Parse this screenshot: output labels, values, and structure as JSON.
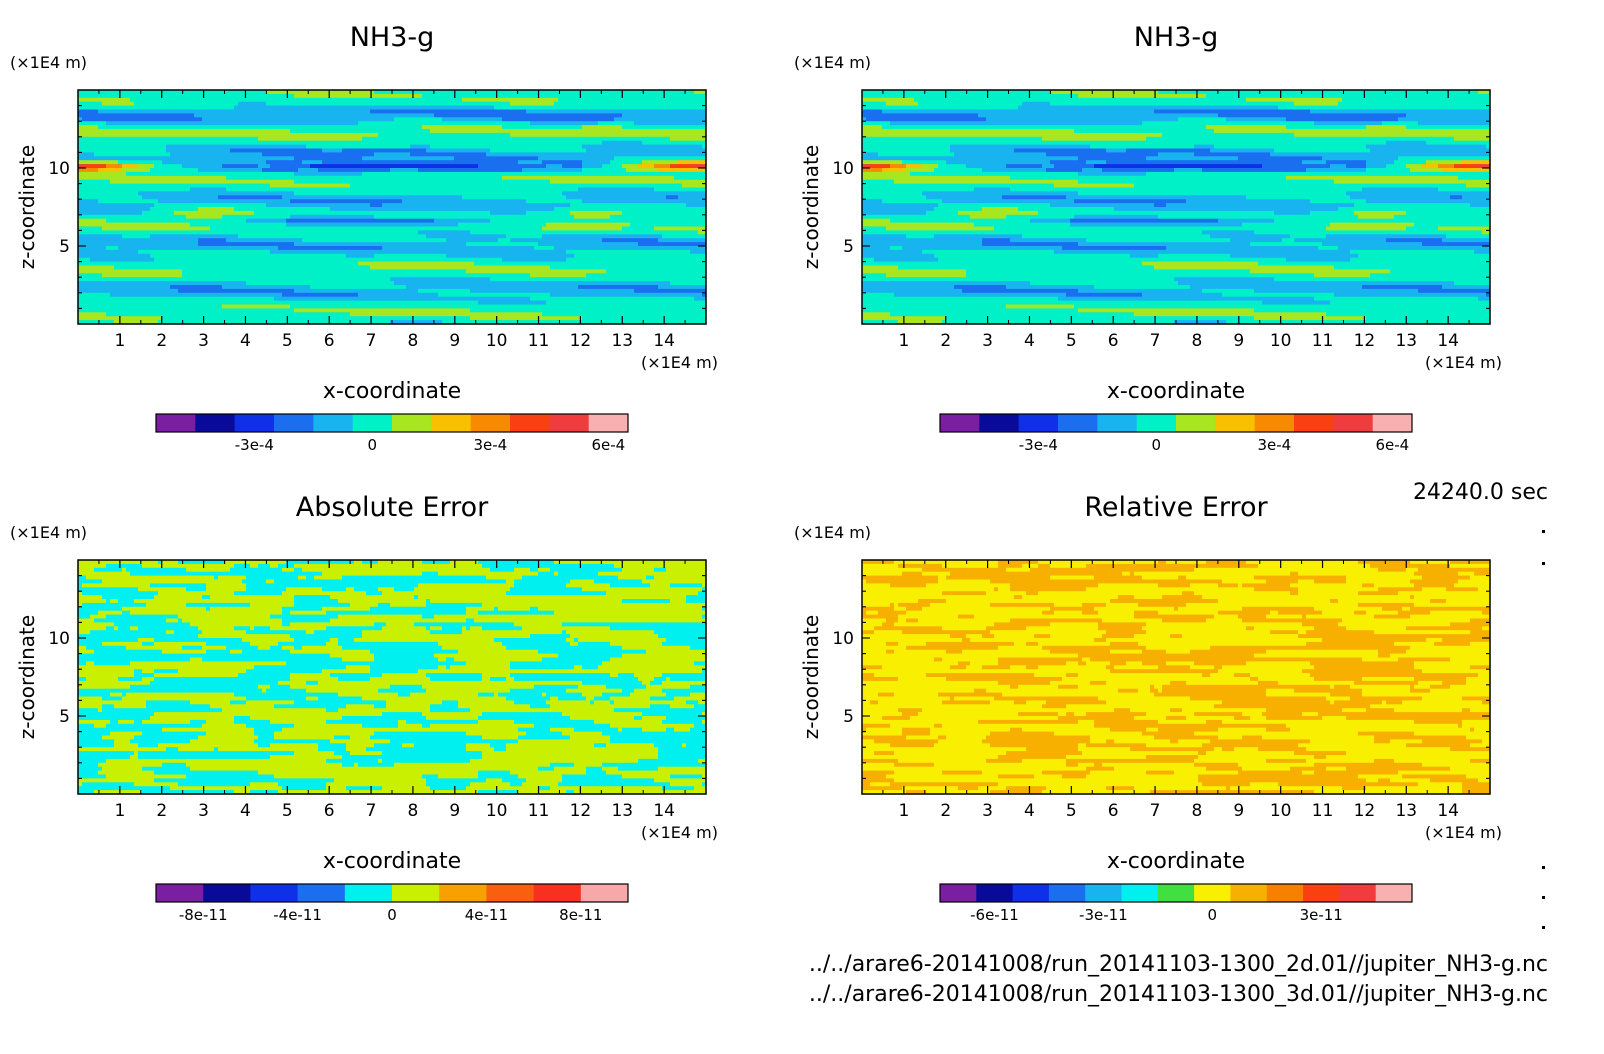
{
  "time_label": "24240.0 sec",
  "files": [
    "../../arare6-20141008/run_20141103-1300_2d.01//jupiter_NH3-g.nc",
    "../../arare6-20141008/run_20141103-1300_3d.01//jupiter_NH3-g.nc"
  ],
  "chart_data": [
    {
      "type": "heatmap",
      "title": "NH3-g",
      "xlabel": "x-coordinate",
      "ylabel": "z-coordinate",
      "x_unit": "(×1E4 m)",
      "y_unit": "(×1E4 m)",
      "xlim": [
        0,
        15
      ],
      "ylim": [
        0,
        15
      ],
      "x_ticks": [
        1,
        2,
        3,
        4,
        5,
        6,
        7,
        8,
        9,
        10,
        11,
        12,
        13,
        14
      ],
      "y_ticks": [
        5,
        10
      ],
      "colorbar": {
        "colors": [
          "#7a1fa2",
          "#0a0a9a",
          "#1030e8",
          "#1a6ef0",
          "#18b4f0",
          "#00f0c8",
          "#a8e620",
          "#f8c000",
          "#f88a00",
          "#f84010",
          "#f03c3c",
          "#f8b0b0"
        ],
        "tick_labels": [
          "-3e-4",
          "0",
          "3e-4",
          "6e-4"
        ],
        "tick_positions": [
          2.5,
          5.5,
          8.5,
          11.5
        ]
      },
      "field": "nh3"
    },
    {
      "type": "heatmap",
      "title": "NH3-g",
      "xlabel": "x-coordinate",
      "ylabel": "z-coordinate",
      "x_unit": "(×1E4 m)",
      "y_unit": "(×1E4 m)",
      "xlim": [
        0,
        15
      ],
      "ylim": [
        0,
        15
      ],
      "x_ticks": [
        1,
        2,
        3,
        4,
        5,
        6,
        7,
        8,
        9,
        10,
        11,
        12,
        13,
        14
      ],
      "y_ticks": [
        5,
        10
      ],
      "colorbar": {
        "colors": [
          "#7a1fa2",
          "#0a0a9a",
          "#1030e8",
          "#1a6ef0",
          "#18b4f0",
          "#00f0c8",
          "#a8e620",
          "#f8c000",
          "#f88a00",
          "#f84010",
          "#f03c3c",
          "#f8b0b0"
        ],
        "tick_labels": [
          "-3e-4",
          "0",
          "3e-4",
          "6e-4"
        ],
        "tick_positions": [
          2.5,
          5.5,
          8.5,
          11.5
        ]
      },
      "field": "nh3"
    },
    {
      "type": "heatmap",
      "title": "Absolute Error",
      "xlabel": "x-coordinate",
      "ylabel": "z-coordinate",
      "x_unit": "(×1E4 m)",
      "y_unit": "(×1E4 m)",
      "xlim": [
        0,
        15
      ],
      "ylim": [
        0,
        15
      ],
      "x_ticks": [
        1,
        2,
        3,
        4,
        5,
        6,
        7,
        8,
        9,
        10,
        11,
        12,
        13,
        14
      ],
      "y_ticks": [
        5,
        10
      ],
      "colorbar": {
        "colors": [
          "#7a1fa2",
          "#0a0a9a",
          "#1030e8",
          "#1a6ef0",
          "#00f0f0",
          "#c8f000",
          "#f8a000",
          "#f86010",
          "#f83020",
          "#f8a8a8"
        ],
        "tick_labels": [
          "-8e-11",
          "-4e-11",
          "0",
          "4e-11",
          "8e-11"
        ],
        "tick_positions": [
          1,
          3,
          5,
          7,
          9
        ]
      },
      "field": "abs"
    },
    {
      "type": "heatmap",
      "title": "Relative Error",
      "xlabel": "x-coordinate",
      "ylabel": "z-coordinate",
      "x_unit": "(×1E4 m)",
      "y_unit": "(×1E4 m)",
      "xlim": [
        0,
        15
      ],
      "ylim": [
        0,
        15
      ],
      "x_ticks": [
        1,
        2,
        3,
        4,
        5,
        6,
        7,
        8,
        9,
        10,
        11,
        12,
        13,
        14
      ],
      "y_ticks": [
        5,
        10
      ],
      "colorbar": {
        "colors": [
          "#7a1fa2",
          "#0a0a9a",
          "#1030e8",
          "#1a6ef0",
          "#18b4f0",
          "#00f0f0",
          "#40e040",
          "#f8f000",
          "#f8b000",
          "#f88000",
          "#f84010",
          "#f03c3c",
          "#f8b0b0"
        ],
        "tick_labels": [
          "-6e-11",
          "-3e-11",
          "0",
          "3e-11"
        ],
        "tick_positions": [
          1.5,
          4.5,
          7.5,
          10.5
        ]
      },
      "field": "rel"
    }
  ]
}
